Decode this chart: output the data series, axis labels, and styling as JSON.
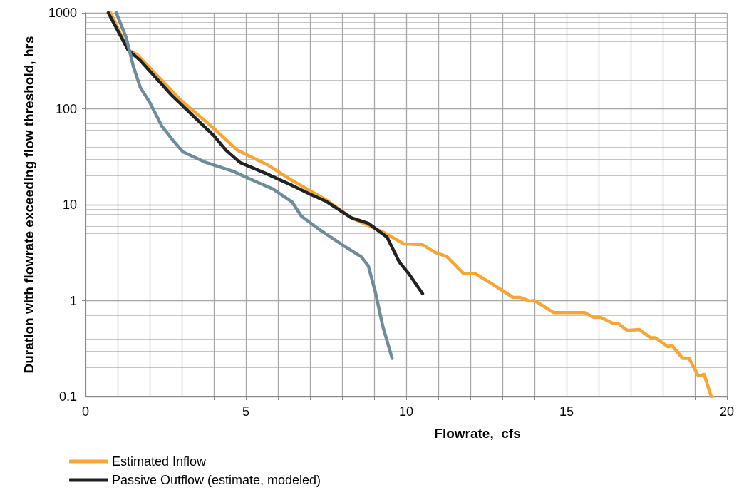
{
  "chart_data": {
    "type": "line",
    "xlabel": "Flowrate,  cfs",
    "ylabel": "Duration with flowrate exceeding flow threshold, hrs",
    "log": "y",
    "grid": true,
    "legend": "bottom left",
    "marker": "none",
    "line_style": "solid",
    "xlim": [
      0,
      20
    ],
    "ylim": [
      0.1,
      1000
    ],
    "xticks": [
      0,
      {
        "value": 1,
        "label": null
      },
      {
        "value": 2,
        "label": null
      },
      {
        "value": 3,
        "label": null
      },
      {
        "value": 4,
        "label": null
      },
      5,
      {
        "value": 6,
        "label": null
      },
      {
        "value": 7,
        "label": null
      },
      {
        "value": 8,
        "label": null
      },
      {
        "value": 9,
        "label": null
      },
      10,
      {
        "value": 11,
        "label": null
      },
      {
        "value": 12,
        "label": null
      },
      {
        "value": 13,
        "label": null
      },
      {
        "value": 14,
        "label": null
      },
      15,
      {
        "value": 16,
        "label": null
      },
      {
        "value": 17,
        "label": null
      },
      {
        "value": 18,
        "label": null
      },
      {
        "value": 19,
        "label": null
      },
      20
    ],
    "yticks": [
      0.1,
      1,
      10,
      100,
      1000
    ],
    "series": [
      {
        "name": "Estimated Inflow",
        "color": "#f7a535",
        "x": [
          0.78,
          1.33,
          1.62,
          2.96,
          4.0,
          4.73,
          5.71,
          6.44,
          7.49,
          8.29,
          9.27,
          9.93,
          10.5,
          10.89,
          11.27,
          11.78,
          12.16,
          12.67,
          13.33,
          13.56,
          13.84,
          14.0,
          14.6,
          15.56,
          15.85,
          16.07,
          16.44,
          16.6,
          16.89,
          17.27,
          17.62,
          17.78,
          18.16,
          18.29,
          18.62,
          18.82,
          19.11,
          19.29,
          19.51
        ],
        "values": [
          1000,
          410,
          364,
          124,
          62.5,
          37,
          25.6,
          17.9,
          11.3,
          7.3,
          5.2,
          3.9,
          3.84,
          3.2,
          2.87,
          1.93,
          1.9,
          1.5,
          1.08,
          1.08,
          0.99,
          1.0,
          0.75,
          0.75,
          0.67,
          0.67,
          0.58,
          0.58,
          0.49,
          0.5,
          0.41,
          0.41,
          0.33,
          0.34,
          0.25,
          0.25,
          0.164,
          0.17,
          0.1
        ]
      },
      {
        "name": "Passive Outflow (estimate, modeled)",
        "color": "#222222",
        "x": [
          0.71,
          1.33,
          1.71,
          2.67,
          4.0,
          4.38,
          4.82,
          5.62,
          6.44,
          7.04,
          7.49,
          8.29,
          8.82,
          9.4,
          9.78,
          10.07,
          10.51
        ],
        "values": [
          1000,
          410,
          318,
          140,
          52.6,
          37,
          27.5,
          21.2,
          15.9,
          12.7,
          10.9,
          7.3,
          6.4,
          4.6,
          2.54,
          1.93,
          1.18
        ]
      },
      {
        "color": "#6f8c9a",
        "x": [
          0.96,
          1.27,
          1.49,
          1.71,
          2.0,
          2.38,
          2.73,
          3.04,
          3.71,
          4.6,
          5.33,
          5.84,
          6.44,
          6.73,
          7.33,
          8.07,
          8.6,
          8.82,
          9.04,
          9.27,
          9.56
        ],
        "values": [
          1000,
          550,
          277,
          166,
          117,
          66,
          46.7,
          35.5,
          27.9,
          22.3,
          17.3,
          14.6,
          10.7,
          7.6,
          5.4,
          3.7,
          2.86,
          2.3,
          1.22,
          0.54,
          0.25
        ]
      }
    ]
  }
}
